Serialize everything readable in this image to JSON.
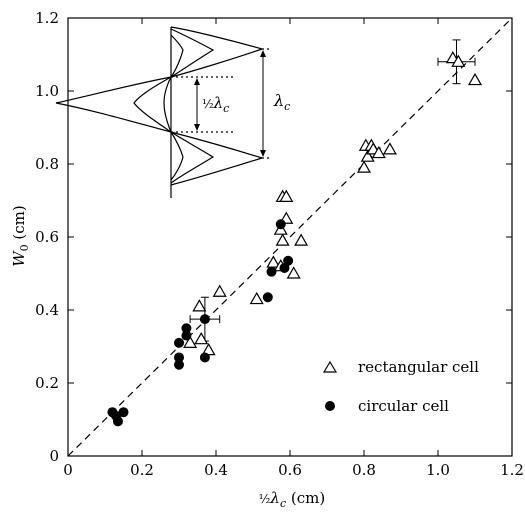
{
  "chart_data": {
    "type": "scatter",
    "xlabel_prefix": "½",
    "xlabel_lambda": "λ",
    "xlabel_sub": "c",
    "xlabel_suffix": " (cm)",
    "ylabel_main": "W",
    "ylabel_sub": "0",
    "ylabel_suffix": " (cm)",
    "xlim": [
      0,
      1.2
    ],
    "ylim": [
      0,
      1.2
    ],
    "xticks": [
      0,
      0.2,
      0.4,
      0.6,
      0.8,
      1.0,
      1.2
    ],
    "yticks": [
      0,
      0.2,
      0.4,
      0.6,
      0.8,
      1.0,
      1.2
    ],
    "xtick_labels": [
      "0",
      "0.2",
      "0.4",
      "0.6",
      "0.8",
      "1.0",
      "1.2"
    ],
    "ytick_labels": [
      "0",
      "0.2",
      "0.4",
      "0.6",
      "0.8",
      "1.0",
      "1.2"
    ],
    "grid": false,
    "legend_position": "bottom-right",
    "fit_line": {
      "style": "dashed",
      "x": [
        0,
        1.2
      ],
      "y": [
        0,
        1.2
      ]
    },
    "series": [
      {
        "name": "rectangular cell",
        "marker": "open-triangle",
        "points": [
          [
            0.33,
            0.31
          ],
          [
            0.355,
            0.41
          ],
          [
            0.36,
            0.32
          ],
          [
            0.38,
            0.29
          ],
          [
            0.41,
            0.45
          ],
          [
            0.51,
            0.43
          ],
          [
            0.555,
            0.53
          ],
          [
            0.575,
            0.52
          ],
          [
            0.58,
            0.59
          ],
          [
            0.575,
            0.62
          ],
          [
            0.58,
            0.71
          ],
          [
            0.59,
            0.71
          ],
          [
            0.59,
            0.65
          ],
          [
            0.61,
            0.5
          ],
          [
            0.63,
            0.59
          ],
          [
            0.8,
            0.79
          ],
          [
            0.805,
            0.85
          ],
          [
            0.81,
            0.82
          ],
          [
            0.82,
            0.85
          ],
          [
            0.825,
            0.84
          ],
          [
            0.84,
            0.83
          ],
          [
            0.87,
            0.84
          ],
          [
            1.04,
            1.09
          ],
          [
            1.055,
            1.08
          ],
          [
            1.1,
            1.03
          ]
        ]
      },
      {
        "name": "circular cell",
        "marker": "filled-circle",
        "points": [
          [
            0.12,
            0.12
          ],
          [
            0.13,
            0.11
          ],
          [
            0.135,
            0.095
          ],
          [
            0.15,
            0.12
          ],
          [
            0.3,
            0.25
          ],
          [
            0.3,
            0.27
          ],
          [
            0.3,
            0.31
          ],
          [
            0.32,
            0.33
          ],
          [
            0.32,
            0.35
          ],
          [
            0.37,
            0.27
          ],
          [
            0.37,
            0.375
          ],
          [
            0.54,
            0.435
          ],
          [
            0.55,
            0.505
          ],
          [
            0.575,
            0.635
          ],
          [
            0.585,
            0.515
          ],
          [
            0.595,
            0.535
          ]
        ]
      }
    ],
    "error_bars": [
      {
        "x": 1.05,
        "y": 1.08,
        "x_err": 0.05,
        "y_err": 0.06
      },
      {
        "x": 0.37,
        "y": 0.375,
        "x_err": 0.04,
        "y_err": 0.06
      }
    ],
    "inset": {
      "label_half_prefix": "½",
      "label_half_lambda": "λ",
      "label_half_sub": "c",
      "label_full_lambda": "λ",
      "label_full_sub": "c"
    }
  }
}
